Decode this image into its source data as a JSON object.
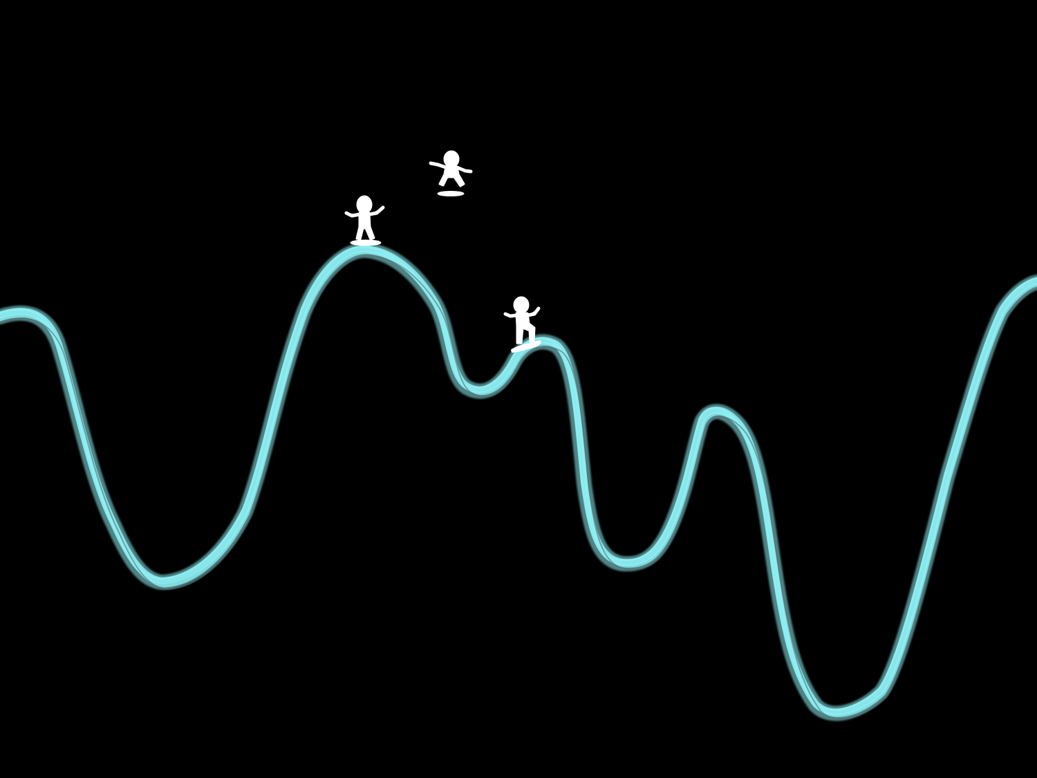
{
  "scene": {
    "background_color": "#000000",
    "wave_color": "#8ff0f4",
    "wave_shadow_color": "#5a6e70",
    "figure_color": "#ffffff",
    "figures": [
      {
        "name": "surfer-on-peak",
        "pose": "standing-on-board"
      },
      {
        "name": "surfer-jumping",
        "pose": "airborne-with-board"
      },
      {
        "name": "surfer-on-small-crest",
        "pose": "standing-on-board"
      }
    ]
  }
}
